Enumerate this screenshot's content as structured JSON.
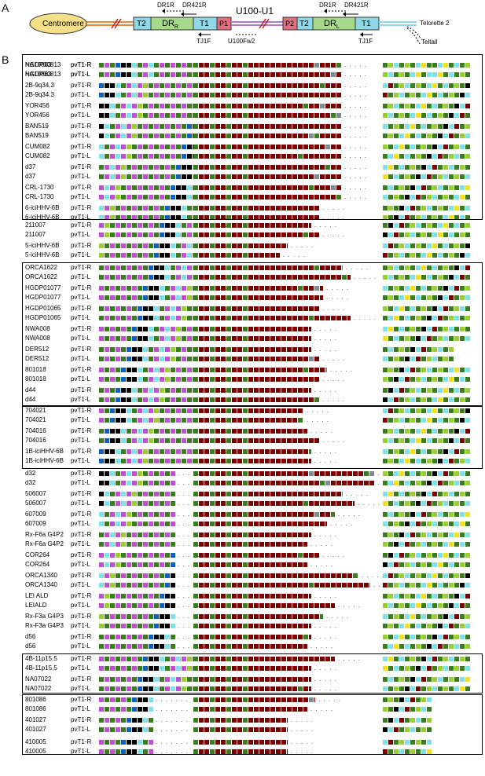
{
  "panel_a": {
    "label": "A",
    "centromere": "Centromere",
    "t2_left": "T2",
    "dr_r": "DR",
    "dr_r_sub": "R",
    "t1_left": "T1",
    "p1": "P1",
    "u100": "U100-U1",
    "p2": "P2",
    "t2_right": "T2",
    "dr_l": "DR",
    "dr_l_sub": "L",
    "t1_right": "T1",
    "dr1r_left": "DR1R",
    "dr421r_left": "DR421R",
    "tj1f_left": "TJ1F",
    "u100fw2": "U100Fw2",
    "dr1r_right": "DR1R",
    "dr421r_right": "DR421R",
    "tj1f_right": "TJ1F",
    "telorette": "Telorette 2",
    "teltail": "Teltail",
    "colors": {
      "centromere": "#f5e08a",
      "t": "#8fd8e8",
      "dr": "#a6d98a",
      "p": "#e07080",
      "line_orange": "#e88a3a",
      "line_purple": "#b07ad0"
    }
  },
  "panel_b": {
    "label": "B",
    "rows": [
      {
        "sample": "NA10863",
        "primer": "pvT1-R"
      },
      {
        "sample": "NA10863",
        "primer": "pvT1-L"
      },
      {
        "sample": "2B-9q34.3",
        "primer": "pvT1-R"
      },
      {
        "sample": "2B-9q34.3",
        "primer": "pvT1-L"
      },
      {
        "sample": "YOR456",
        "primer": "pvT1-R"
      },
      {
        "sample": "YOR456",
        "primer": "pvT1-L"
      },
      {
        "sample": "BAN519",
        "primer": "pvT1-R"
      },
      {
        "sample": "BAN519",
        "primer": "pvT1-L"
      },
      {
        "sample": "CUM082",
        "primer": "pvT1-R"
      },
      {
        "sample": "CUM082",
        "primer": "pvT1-L"
      },
      {
        "sample": "d37",
        "primer": "pvT1-R"
      },
      {
        "sample": "d37",
        "primer": "pvT1-L"
      },
      {
        "sample": "CRL-1730",
        "primer": "pvT1-R"
      },
      {
        "sample": "CRL-1730",
        "primer": "pvT1-L"
      },
      {
        "sample": "6-iciHHV-6B",
        "primer": "pvT1-R"
      },
      {
        "sample": "6-iciHHV-6B",
        "primer": "pvT1-L"
      },
      {
        "sample": "211007",
        "primer": "pvT1-R"
      },
      {
        "sample": "211007",
        "primer": "pvT1-L"
      },
      {
        "sample": "5-iciHHV-6B",
        "primer": "pvT1-R"
      },
      {
        "sample": "5-iciHHV-6B",
        "primer": "pvT1-L"
      },
      {
        "sample": "ORCA1622",
        "primer": "pvT1-R"
      },
      {
        "sample": "ORCA1622",
        "primer": "pvT1-L"
      },
      {
        "sample": "HGDP01077",
        "primer": "pvT1-R"
      },
      {
        "sample": "HGDP01077",
        "primer": "pvT1-L"
      },
      {
        "sample": "HGDP01065",
        "primer": "pvT1-R"
      },
      {
        "sample": "HGDP01065",
        "primer": "pvT1-L"
      },
      {
        "sample": "NWA008",
        "primer": "pvT1-R"
      },
      {
        "sample": "NWA008",
        "primer": "pvT1-L"
      },
      {
        "sample": "DER512",
        "primer": "pvT1-R"
      },
      {
        "sample": "DER512",
        "primer": "pvT1-L"
      },
      {
        "sample": "801018",
        "primer": "pvT1-R"
      },
      {
        "sample": "801018",
        "primer": "pvT1-L"
      },
      {
        "sample": "d44",
        "primer": "pvT1-R"
      },
      {
        "sample": "d44",
        "primer": "pvT1-L"
      },
      {
        "sample": "704021",
        "primer": "pvT1-R"
      },
      {
        "sample": "704021",
        "primer": "pvT1-L"
      },
      {
        "sample": "704016",
        "primer": "pvT1-R"
      },
      {
        "sample": "704016",
        "primer": "pvT1-L"
      },
      {
        "sample": "1B-iciHHV-6B",
        "primer": "pvT1-R"
      },
      {
        "sample": "1B-iciHHV-6B",
        "primer": "pvT1-L"
      },
      {
        "sample": "d32",
        "primer": "pvT1-R"
      },
      {
        "sample": "d32",
        "primer": "pvT1-L"
      },
      {
        "sample": "506007",
        "primer": "pvT1-R"
      },
      {
        "sample": "506007",
        "primer": "pvT1-L"
      },
      {
        "sample": "607009",
        "primer": "pvT1-R"
      },
      {
        "sample": "607009",
        "primer": "pvT1-L"
      },
      {
        "sample": "Rx-F6a G4P2",
        "primer": "pvT1-R"
      },
      {
        "sample": "Rx-F6a G4P2",
        "primer": "pvT1-L"
      },
      {
        "sample": "COR264",
        "primer": "pvT1-R"
      },
      {
        "sample": "COR264",
        "primer": "pvT1-L"
      },
      {
        "sample": "ORCA1340",
        "primer": "pvT1-R"
      },
      {
        "sample": "ORCA1340",
        "primer": "pvT1-L"
      },
      {
        "sample": "LEI ALD",
        "primer": "pvT1-R"
      },
      {
        "sample": "LEIALD",
        "primer": "pvT1-L"
      },
      {
        "sample": "Rx-F3a G4P3",
        "primer": "pvT1-R"
      },
      {
        "sample": "Rx-F3a G4P3",
        "primer": "pvT1-L"
      },
      {
        "sample": "d56",
        "primer": "pvT1-R"
      },
      {
        "sample": "d56",
        "primer": "pvT1-L"
      },
      {
        "sample": "4B-11p15.5",
        "primer": "pvT1-R"
      },
      {
        "sample": "4B-11p15.5",
        "primer": "pvT1-L"
      },
      {
        "sample": "NA07022",
        "primer": "pvT1-R"
      },
      {
        "sample": "NA07022",
        "primer": "pvT1-L"
      },
      {
        "sample": "801086",
        "primer": "pvT1-R"
      },
      {
        "sample": "801086",
        "primer": "pvT1-L"
      },
      {
        "sample": "401027",
        "primer": "pvT1-R"
      },
      {
        "sample": "401027",
        "primer": "pvT1-L"
      },
      {
        "sample": "410005",
        "primer": "pvT1-R"
      },
      {
        "sample": "410005",
        "primer": "pvT1-L"
      },
      {
        "sample": "HGDP00813",
        "primer": "pvT1-R"
      },
      {
        "sample": "HGDP00813",
        "primer": "pvT1-L"
      }
    ],
    "colors": {
      "dark_red": "#7a0000",
      "green": "#3b7d1e",
      "light_green": "#9acd32",
      "cyan": "#7fe0e8",
      "magenta": "#c050d0",
      "black": "#000000",
      "blue": "#1060c0",
      "yellow": "#f0e020",
      "grey": "#808890",
      "white": "#ffffff",
      "dark_green": "#2a6a10"
    }
  }
}
